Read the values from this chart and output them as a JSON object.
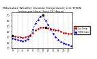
{
  "title": "Milwaukee Weather Outdoor Temperature (vs) THSW Index per Hour (Last 24 Hours)",
  "hours": [
    0,
    1,
    2,
    3,
    4,
    5,
    6,
    7,
    8,
    9,
    10,
    11,
    12,
    13,
    14,
    15,
    16,
    17,
    18,
    19,
    20,
    21,
    22,
    23
  ],
  "temp": [
    32,
    31,
    30,
    30,
    29,
    30,
    31,
    34,
    38,
    42,
    45,
    47,
    48,
    47,
    46,
    45,
    44,
    43,
    42,
    40,
    38,
    37,
    36,
    36
  ],
  "thsw": [
    28,
    26,
    25,
    24,
    23,
    24,
    26,
    33,
    44,
    55,
    62,
    68,
    70,
    60,
    52,
    44,
    36,
    30,
    25,
    21,
    19,
    17,
    16,
    14
  ],
  "temp_color": "#cc0000",
  "thsw_color": "#0000cc",
  "bg_color": "#ffffff",
  "grid_color": "#888888",
  "ylim": [
    10,
    75
  ],
  "ytick_values": [
    10,
    20,
    30,
    40,
    50,
    60,
    70
  ],
  "ytick_labels": [
    "10",
    "20",
    "30",
    "40",
    "50",
    "60",
    "70"
  ],
  "xtick_values": [
    0,
    1,
    2,
    3,
    4,
    5,
    6,
    7,
    8,
    9,
    10,
    11,
    12,
    13,
    14,
    15,
    16,
    17,
    18,
    19,
    20,
    21,
    22,
    23
  ],
  "title_fontsize": 3.2,
  "tick_fontsize": 2.5,
  "legend_labels": [
    "Out Temp",
    "THSW Index"
  ],
  "legend_colors": [
    "#cc0000",
    "#0000cc"
  ],
  "black_markers_temp": [
    0,
    13
  ],
  "black_markers_thsw": [
    12
  ]
}
